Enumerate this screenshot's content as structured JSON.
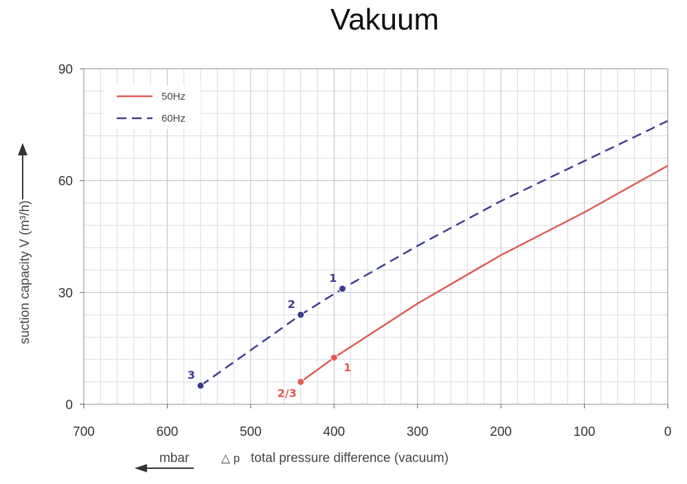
{
  "chart_data": {
    "type": "line",
    "title": "Vakuum",
    "xlabel": "total pressure difference (vacuum)",
    "xlabel_symbol": "△ p",
    "xlabel_unit": "mbar",
    "ylabel": "suction capacity V (m³/h)",
    "xlim": [
      700,
      0
    ],
    "ylim": [
      0,
      90
    ],
    "x_ticks": [
      700,
      600,
      500,
      400,
      300,
      200,
      100,
      0
    ],
    "y_ticks": [
      0,
      30,
      60,
      90
    ],
    "x_minor_step": 20,
    "y_minor_step": 6,
    "grid": true,
    "legend_position": "top-left",
    "series": [
      {
        "name": "50Hz",
        "color": "#e05a52",
        "dash": "solid",
        "points": [
          [
            440,
            6
          ],
          [
            400,
            12.5
          ],
          [
            300,
            27
          ],
          [
            200,
            40
          ],
          [
            100,
            51.5
          ],
          [
            0,
            64
          ]
        ],
        "markers": [
          {
            "x": 440,
            "y": 6,
            "label": "2/3",
            "label_side": "bottom-left"
          },
          {
            "x": 400,
            "y": 12.5,
            "label": "1",
            "label_side": "bottom-right"
          }
        ]
      },
      {
        "name": "60Hz",
        "color": "#3b3b8f",
        "dash": "dashed",
        "points": [
          [
            560,
            5
          ],
          [
            440,
            24
          ],
          [
            390,
            31
          ],
          [
            300,
            42.5
          ],
          [
            200,
            54.5
          ],
          [
            0,
            76
          ]
        ],
        "markers": [
          {
            "x": 560,
            "y": 5,
            "label": "3",
            "label_side": "top-left"
          },
          {
            "x": 440,
            "y": 24,
            "label": "2",
            "label_side": "top-left"
          },
          {
            "x": 390,
            "y": 31,
            "label": "1",
            "label_side": "top-left"
          }
        ]
      }
    ]
  }
}
